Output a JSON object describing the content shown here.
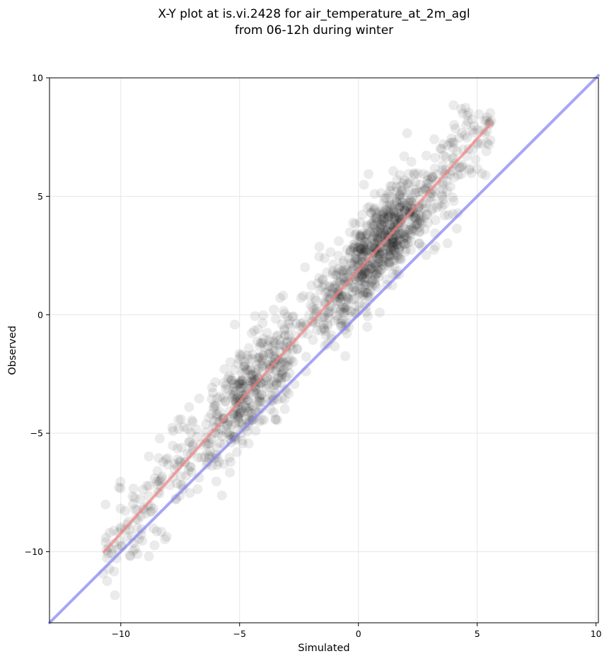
{
  "chart_data": {
    "type": "scatter",
    "title_lines": [
      "X-Y plot at is.vi.2428 for air_temperature_at_2m_agl",
      "from 06-12h during winter"
    ],
    "xlabel": "Simulated",
    "ylabel": "Observed",
    "xlim": [
      -13,
      10.1
    ],
    "ylim": [
      -13,
      10
    ],
    "xticks": [
      -10,
      -5,
      0,
      5,
      10
    ],
    "yticks": [
      -10,
      -5,
      0,
      5,
      10
    ],
    "xtick_labels": [
      "−10",
      "−5",
      "0",
      "5",
      "10"
    ],
    "ytick_labels": [
      "−10",
      "−5",
      "0",
      "5",
      "10"
    ],
    "grid": true,
    "legend": "none",
    "colors": {
      "points": "#000000",
      "fit_line": "#f08080",
      "identity_line": "#8080f0",
      "grid": "#e6e6e6"
    },
    "point_opacity": 0.08,
    "point_count": 1400,
    "lines": [
      {
        "role": "regression fit",
        "x": [
          -10.7,
          5.6
        ],
        "y": [
          -10.0,
          8.1
        ],
        "color": "#f08080"
      },
      {
        "role": "1:1 line",
        "x": [
          -13,
          10.1
        ],
        "y": [
          -13,
          10.1
        ],
        "color": "#8080f0"
      }
    ],
    "point_cloud": {
      "x_range": [
        -10.8,
        5.6
      ],
      "y_range": [
        -11.9,
        8.9
      ],
      "fit_slope": 1.11,
      "fit_intercept": 1.88,
      "residual_sd": 1.05,
      "dense_regions": [
        {
          "x": [
            -0.5,
            2.5
          ],
          "y": [
            2,
            6
          ]
        },
        {
          "x": [
            -5.5,
            -3
          ],
          "y": [
            -6,
            -1.5
          ]
        }
      ]
    }
  }
}
